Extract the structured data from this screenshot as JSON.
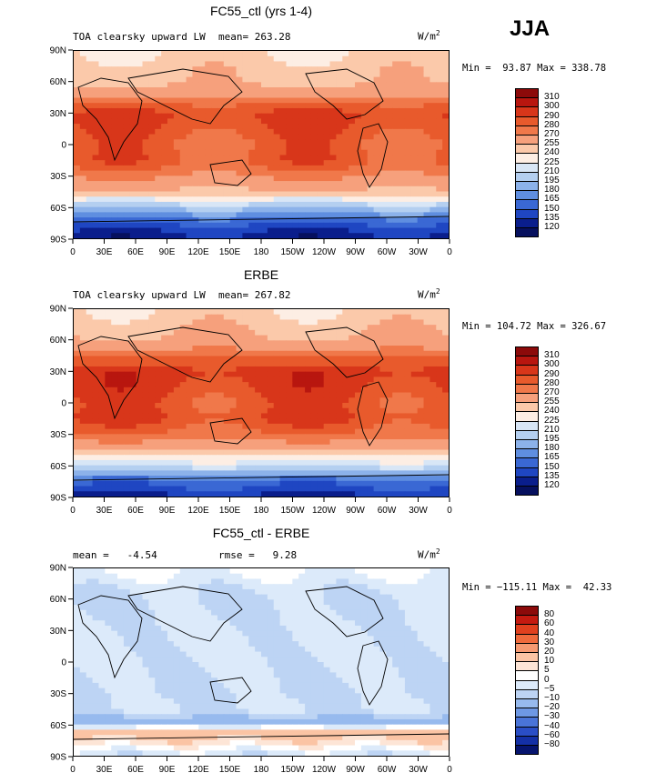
{
  "season": "JJA",
  "panels": [
    {
      "title": "FC55_ctl (yrs 1-4)",
      "subtitle_left": "TOA clearsky upward LW",
      "mean_text": "mean= 263.28",
      "units": "W/m",
      "units_sup": "2",
      "minmax": "Min =  93.87 Max = 338.78",
      "colorbar_labels": [
        "310",
        "300",
        "290",
        "280",
        "270",
        "255",
        "240",
        "225",
        "210",
        "195",
        "180",
        "165",
        "150",
        "135",
        "120"
      ]
    },
    {
      "title": "ERBE",
      "subtitle_left": "TOA clearsky upward LW",
      "mean_text": "mean= 267.82",
      "units": "W/m",
      "units_sup": "2",
      "minmax": "Min = 104.72 Max = 326.67",
      "colorbar_labels": [
        "310",
        "300",
        "290",
        "280",
        "270",
        "255",
        "240",
        "225",
        "210",
        "195",
        "180",
        "165",
        "150",
        "135",
        "120"
      ]
    },
    {
      "title": "FC55_ctl - ERBE",
      "subtitle_left": "mean =   -4.54",
      "mean_text": "rmse =   9.28",
      "units": "W/m",
      "units_sup": "2",
      "minmax": "Min = −115.11 Max =  42.33",
      "colorbar_labels": [
        "80",
        "60",
        "40",
        "30",
        "20",
        "10",
        "5",
        "0",
        "−5",
        "−10",
        "−20",
        "−30",
        "−40",
        "−60",
        "−80"
      ]
    }
  ],
  "axes": {
    "y_ticks": [
      "90N",
      "60N",
      "30N",
      "0",
      "30S",
      "60S",
      "90S"
    ],
    "x_ticks": [
      "0",
      "30E",
      "60E",
      "90E",
      "120E",
      "150E",
      "180",
      "150W",
      "120W",
      "90W",
      "60W",
      "30W",
      "0"
    ]
  },
  "colors": {
    "abs_scale": [
      "#8c0a0a",
      "#b8160f",
      "#d8361a",
      "#e85a2c",
      "#f0784a",
      "#f6a07c",
      "#fbc9aa",
      "#fdeee4",
      "#d8e6f6",
      "#b4cff0",
      "#8cb2ea",
      "#5f8ee0",
      "#3a68d4",
      "#1f46c2",
      "#0a1e8c",
      "#06105e"
    ],
    "diff_scale": [
      "#8c0a0a",
      "#c41a10",
      "#e0401e",
      "#ef6a3c",
      "#f69a72",
      "#fbc4a4",
      "#fde5d6",
      "#ffffff",
      "#dceafa",
      "#bdd4f4",
      "#97baee",
      "#6e98e4",
      "#4a74d8",
      "#2a4ec6",
      "#1430a6",
      "#06146e"
    ]
  },
  "chart_data": [
    {
      "type": "heatmap",
      "title": "FC55_ctl (yrs 1-4)",
      "subtitle": "TOA clearsky upward LW",
      "units": "W/m2",
      "mean": 263.28,
      "min": 93.87,
      "max": 338.78,
      "xlabel": "",
      "ylabel": "",
      "x_ticks": [
        "0",
        "30E",
        "60E",
        "90E",
        "120E",
        "150E",
        "180",
        "150W",
        "120W",
        "90W",
        "60W",
        "30W",
        "0"
      ],
      "y_ticks": [
        "90N",
        "60N",
        "30N",
        "0",
        "30S",
        "60S",
        "90S"
      ],
      "contour_levels": [
        120,
        135,
        150,
        165,
        180,
        195,
        210,
        225,
        240,
        255,
        270,
        280,
        290,
        300,
        310
      ],
      "lat_profile": [
        [
          90,
          240
        ],
        [
          75,
          248
        ],
        [
          60,
          252
        ],
        [
          45,
          272
        ],
        [
          30,
          292
        ],
        [
          15,
          288
        ],
        [
          0,
          282
        ],
        [
          -15,
          285
        ],
        [
          -30,
          272
        ],
        [
          -45,
          252
        ],
        [
          -60,
          200
        ],
        [
          -75,
          150
        ],
        [
          -90,
          125
        ]
      ]
    },
    {
      "type": "heatmap",
      "title": "ERBE",
      "subtitle": "TOA clearsky upward LW",
      "units": "W/m2",
      "mean": 267.82,
      "min": 104.72,
      "max": 326.67,
      "xlabel": "",
      "ylabel": "",
      "x_ticks": [
        "0",
        "30E",
        "60E",
        "90E",
        "120E",
        "150E",
        "180",
        "150W",
        "120W",
        "90W",
        "60W",
        "30W",
        "0"
      ],
      "y_ticks": [
        "90N",
        "60N",
        "30N",
        "0",
        "30S",
        "60S",
        "90S"
      ],
      "contour_levels": [
        120,
        135,
        150,
        165,
        180,
        195,
        210,
        225,
        240,
        255,
        270,
        280,
        290,
        300,
        310
      ],
      "lat_profile": [
        [
          90,
          242
        ],
        [
          75,
          250
        ],
        [
          60,
          258
        ],
        [
          45,
          278
        ],
        [
          30,
          296
        ],
        [
          15,
          292
        ],
        [
          0,
          286
        ],
        [
          -15,
          290
        ],
        [
          -30,
          278
        ],
        [
          -45,
          258
        ],
        [
          -60,
          215
        ],
        [
          -75,
          160
        ],
        [
          -90,
          130
        ]
      ]
    },
    {
      "type": "heatmap",
      "title": "FC55_ctl - ERBE",
      "units": "W/m2",
      "mean": -4.54,
      "rmse": 9.28,
      "min": -115.11,
      "max": 42.33,
      "xlabel": "",
      "ylabel": "",
      "x_ticks": [
        "0",
        "30E",
        "60E",
        "90E",
        "120E",
        "150E",
        "180",
        "150W",
        "120W",
        "90W",
        "60W",
        "30W",
        "0"
      ],
      "y_ticks": [
        "90N",
        "60N",
        "30N",
        "0",
        "30S",
        "60S",
        "90S"
      ],
      "contour_levels": [
        -80,
        -60,
        -40,
        -30,
        -20,
        -10,
        -5,
        0,
        5,
        10,
        20,
        30,
        40,
        60,
        80
      ],
      "lat_profile": [
        [
          90,
          2
        ],
        [
          75,
          -3
        ],
        [
          60,
          -6
        ],
        [
          45,
          -5
        ],
        [
          30,
          -4
        ],
        [
          15,
          -4
        ],
        [
          0,
          -4
        ],
        [
          -15,
          -5
        ],
        [
          -30,
          -6
        ],
        [
          -45,
          -4
        ],
        [
          -60,
          -15
        ],
        [
          -65,
          15
        ],
        [
          -75,
          10
        ],
        [
          -90,
          -5
        ]
      ]
    }
  ]
}
